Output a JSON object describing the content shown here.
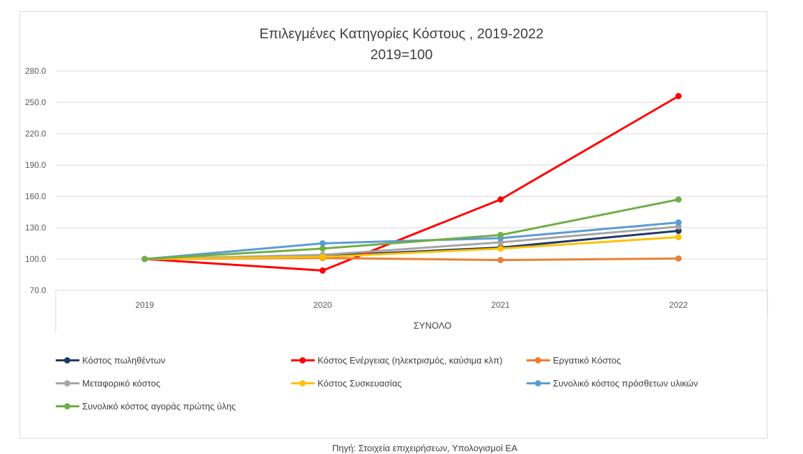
{
  "chart_data": {
    "type": "line",
    "title_line1": "Επιλεγμένες Κατηγορίες Κόστους , 2019-2022",
    "title_line2": "2019=100",
    "xlabel": "ΣΥΝΟΛΟ",
    "categories": [
      "2019",
      "2020",
      "2021",
      "2022"
    ],
    "ylim": [
      70,
      280
    ],
    "yticks": [
      "280.0",
      "250.0",
      "220.0",
      "190.0",
      "160.0",
      "130.0",
      "100.0",
      "70.0"
    ],
    "grid": true,
    "legend_position": "bottom",
    "series": [
      {
        "name": "Κόστος πωληθέντων",
        "color": "#203864",
        "values": [
          100,
          103,
          111,
          127
        ]
      },
      {
        "name": "Κόστος Ενέργειας (ηλεκτρισμός, καύσιμα κλπ)",
        "color": "#ff0000",
        "values": [
          100,
          89,
          157,
          256
        ]
      },
      {
        "name": "Εργατικό Κόστος",
        "color": "#ed7d31",
        "values": [
          100,
          101,
          99,
          100.5
        ]
      },
      {
        "name": "Μεταφορικό κόστος",
        "color": "#a5a5a5",
        "values": [
          100,
          104,
          116,
          131
        ]
      },
      {
        "name": "Κόστος Συσκευασίας",
        "color": "#ffc000",
        "values": [
          100,
          102,
          110,
          121
        ]
      },
      {
        "name": "Συνολικό κόστος πρόσθετων υλικών",
        "color": "#5b9bd5",
        "values": [
          100,
          115,
          120,
          135
        ]
      },
      {
        "name": "Συνολικό κόστος αγοράς πρώτης ύλης",
        "color": "#70ad47",
        "values": [
          100,
          110,
          123,
          157
        ]
      }
    ]
  },
  "source_note": "Πηγή: Στοιχεία επιχειρήσεων, Υπολογισμοί ΕΑ"
}
